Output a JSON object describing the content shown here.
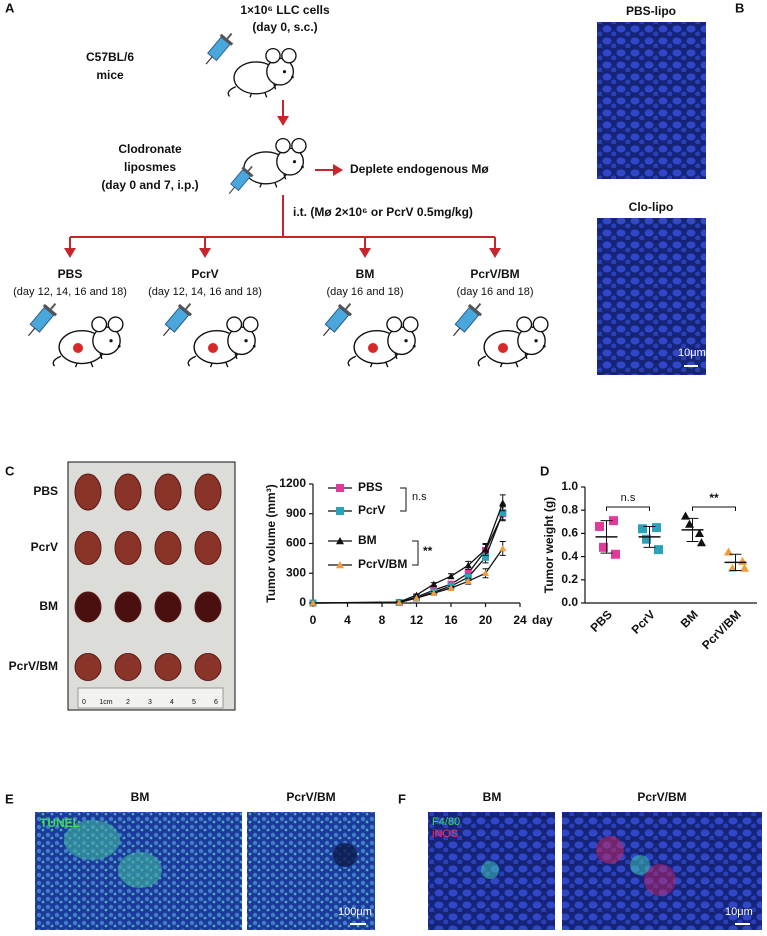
{
  "panel_a": {
    "label": "A",
    "cells": "1×10⁶ LLC  cells",
    "cells_note": "(day 0, s.c.)",
    "mouse_strain": "C57BL/6",
    "mouse_word": "mice",
    "treatment": [
      "Clodronate",
      "liposmes",
      "(day 0 and 7, i.p.)"
    ],
    "effect": "Deplete endogenous Mø",
    "injection": "i.t. (Mø 2×10⁶ or PcrV 0.5mg/kg)",
    "groups": [
      {
        "name": "PBS",
        "days": "(day 12, 14, 16 and 18)"
      },
      {
        "name": "PcrV",
        "days": "(day 12, 14, 16 and 18)"
      },
      {
        "name": "BM",
        "days": "(day 16 and 18)"
      },
      {
        "name": "PcrV/BM",
        "days": "(day 16 and 18)"
      }
    ]
  },
  "panel_b": {
    "label": "B",
    "images": [
      "PBS-lipo",
      "Clo-lipo"
    ],
    "scale": "10μm"
  },
  "panel_c": {
    "label": "C",
    "rows": [
      "PBS",
      "PcrV",
      "BM",
      "PcrV/BM"
    ],
    "ruler": [
      "0",
      "1cm",
      "2",
      "3",
      "4",
      "5",
      "6"
    ]
  },
  "panel_d": {
    "label": "D"
  },
  "panel_e": {
    "label": "E",
    "images": [
      "BM",
      "PcrV/BM"
    ],
    "stain": "TUNEL",
    "scale": "100μm"
  },
  "panel_f": {
    "label": "F",
    "images": [
      "BM",
      "PcrV/BM"
    ],
    "stains": [
      "F4/80",
      "iNOS"
    ],
    "scale": "10μm"
  },
  "chart_data": [
    {
      "type": "line",
      "ylabel": "Tumor volume (mm³)",
      "xlabel": "day",
      "x": [
        0,
        10,
        12,
        14,
        16,
        18,
        20,
        22
      ],
      "xlim": [
        0,
        24
      ],
      "xticks": [
        0,
        4,
        8,
        12,
        16,
        20,
        24
      ],
      "ylim": [
        0,
        1200
      ],
      "yticks": [
        0,
        300,
        600,
        900,
        1200
      ],
      "series": [
        {
          "name": "PBS",
          "color": "#e23a9a",
          "marker": "square",
          "values": [
            0,
            5,
            60,
            130,
            190,
            300,
            530,
            900
          ],
          "errors": [
            0,
            5,
            10,
            15,
            20,
            35,
            60,
            70
          ]
        },
        {
          "name": "PcrV",
          "color": "#2aa3b8",
          "marker": "square",
          "values": [
            0,
            5,
            50,
            110,
            170,
            260,
            460,
            910
          ],
          "errors": [
            0,
            5,
            10,
            15,
            20,
            30,
            55,
            70
          ]
        },
        {
          "name": "BM",
          "color": "#111111",
          "marker": "triangle",
          "values": [
            0,
            10,
            80,
            190,
            270,
            380,
            540,
            1010
          ],
          "errors": [
            0,
            5,
            10,
            15,
            25,
            40,
            60,
            80
          ]
        },
        {
          "name": "PcrV/BM",
          "color": "#f39a3a",
          "marker": "triangle",
          "values": [
            0,
            5,
            50,
            100,
            150,
            220,
            300,
            550
          ],
          "errors": [
            0,
            5,
            10,
            15,
            20,
            30,
            45,
            70
          ]
        }
      ],
      "annotations": [
        "n.s",
        "**"
      ]
    },
    {
      "type": "dot",
      "ylabel": "Tumor weight (g)",
      "ylim": [
        0,
        1.0
      ],
      "yticks": [
        {
          "value": 0,
          "label": "0.0"
        },
        0.2,
        0.4,
        0.6,
        0.8,
        {
          "value": 1.0,
          "label": "1.0"
        }
      ],
      "groups": [
        {
          "name": "PBS",
          "color": "#e23a9a",
          "marker": "square",
          "points": [
            0.66,
            0.71,
            0.48,
            0.42
          ],
          "mean": 0.57,
          "sd": 0.14
        },
        {
          "name": "PcrV",
          "color": "#2aa3b8",
          "marker": "square",
          "points": [
            0.64,
            0.65,
            0.55,
            0.46
          ],
          "mean": 0.57,
          "sd": 0.09
        },
        {
          "name": "BM",
          "color": "#111111",
          "marker": "triangle",
          "points": [
            0.75,
            0.6,
            0.68,
            0.52
          ],
          "mean": 0.63,
          "sd": 0.1
        },
        {
          "name": "PcrV/BM",
          "color": "#f39a3a",
          "marker": "triangle",
          "points": [
            0.44,
            0.36,
            0.3,
            0.3
          ],
          "mean": 0.35,
          "sd": 0.07
        }
      ],
      "annotations": [
        "n.s",
        "**"
      ]
    }
  ]
}
